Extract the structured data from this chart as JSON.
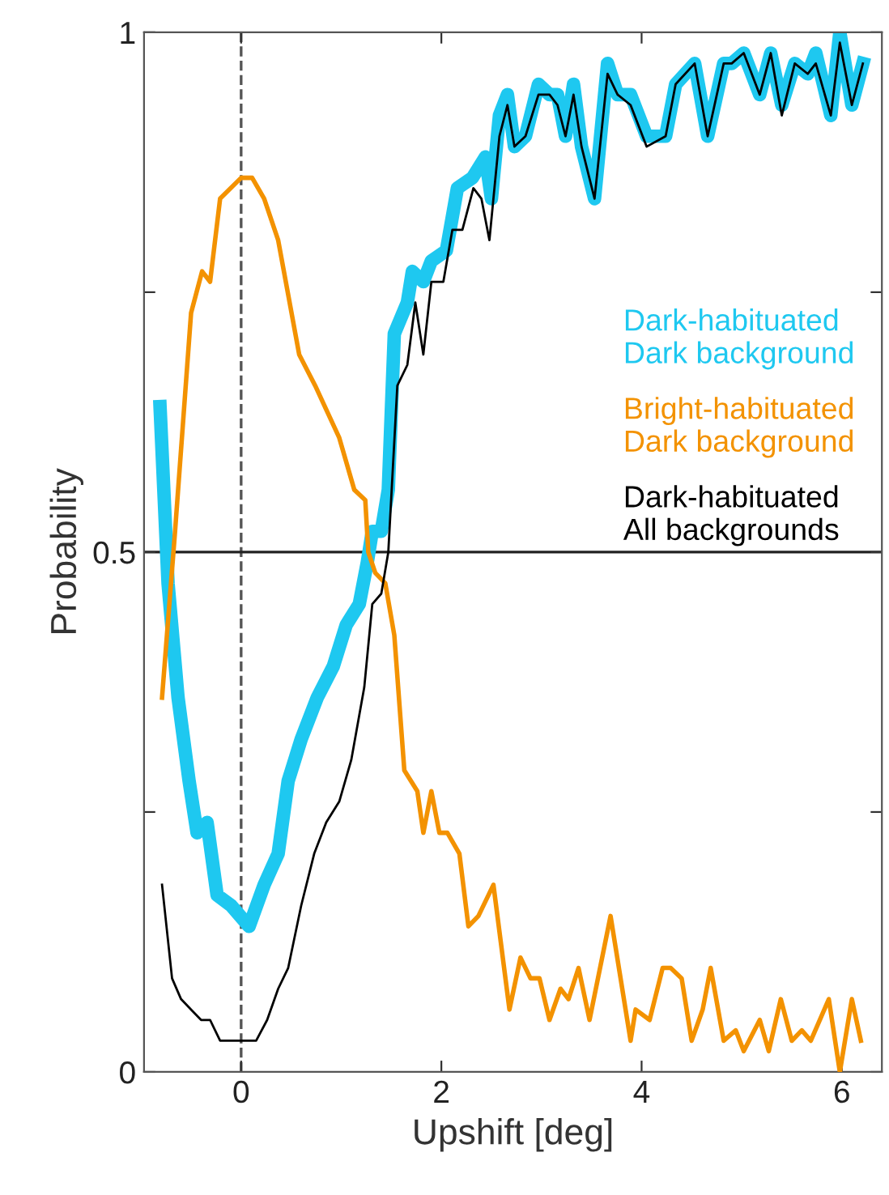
{
  "chart_data": {
    "type": "line",
    "xlabel": "Upshift [deg]",
    "ylabel": "Probability",
    "xlim": [
      -0.97,
      6.4
    ],
    "ylim": [
      0,
      1
    ],
    "xticks": [
      0,
      2,
      4,
      6
    ],
    "yticks": [
      0,
      {
        "value": 0.25,
        "label": null
      },
      0.5,
      {
        "value": 0.75,
        "label": null
      },
      1
    ],
    "grid": false,
    "legend": "right",
    "marker": "none",
    "line_style": "solid",
    "ref_lines": [
      {
        "axis": "x",
        "value": 0,
        "color": "#555555",
        "line_style": "dashed"
      },
      {
        "axis": "y",
        "value": 0.5,
        "color": "#222222",
        "line_style": "solid"
      }
    ],
    "series": [
      {
        "name": "Dark-habituated\nDark background",
        "color": "#1ec8f0",
        "x": [
          -0.81,
          -0.73,
          -0.63,
          -0.52,
          -0.44,
          -0.34,
          -0.24,
          -0.1,
          0.08,
          0.23,
          0.37,
          0.47,
          0.6,
          0.76,
          0.92,
          1.05,
          1.18,
          1.26,
          1.31,
          1.4,
          1.47,
          1.53,
          1.66,
          1.71,
          1.82,
          1.9,
          2.05,
          2.16,
          2.31,
          2.44,
          2.5,
          2.58,
          2.66,
          2.73,
          2.84,
          2.97,
          3.08,
          3.16,
          3.24,
          3.32,
          3.4,
          3.53,
          3.66,
          3.76,
          3.89,
          4.05,
          4.24,
          4.34,
          4.53,
          4.66,
          4.82,
          4.9,
          5.02,
          5.18,
          5.29,
          5.4,
          5.53,
          5.66,
          5.74,
          5.89,
          5.98,
          6.1,
          6.21
        ],
        "values": [
          0.64,
          0.47,
          0.36,
          0.28,
          0.23,
          0.24,
          0.17,
          0.16,
          0.14,
          0.18,
          0.21,
          0.28,
          0.32,
          0.36,
          0.39,
          0.43,
          0.45,
          0.49,
          0.52,
          0.52,
          0.56,
          0.71,
          0.74,
          0.77,
          0.76,
          0.78,
          0.79,
          0.85,
          0.86,
          0.88,
          0.84,
          0.92,
          0.94,
          0.89,
          0.9,
          0.95,
          0.94,
          0.94,
          0.9,
          0.95,
          0.89,
          0.84,
          0.97,
          0.94,
          0.94,
          0.9,
          0.9,
          0.95,
          0.97,
          0.9,
          0.97,
          0.97,
          0.98,
          0.94,
          0.98,
          0.93,
          0.97,
          0.96,
          0.98,
          0.92,
          1.0,
          0.93,
          0.97
        ]
      },
      {
        "name": "Bright-habituated\nDark background",
        "color": "#f39200",
        "x": [
          -0.79,
          -0.66,
          -0.5,
          -0.39,
          -0.31,
          -0.21,
          0,
          0.11,
          0.23,
          0.37,
          0.58,
          0.74,
          0.98,
          1.13,
          1.24,
          1.27,
          1.34,
          1.44,
          1.53,
          1.63,
          1.76,
          1.82,
          1.9,
          1.98,
          2.06,
          2.18,
          2.27,
          2.37,
          2.52,
          2.68,
          2.79,
          2.89,
          2.98,
          3.08,
          3.19,
          3.27,
          3.37,
          3.48,
          3.69,
          3.89,
          3.94,
          4.08,
          4.21,
          4.29,
          4.4,
          4.5,
          4.61,
          4.69,
          4.82,
          4.94,
          5.02,
          5.18,
          5.27,
          5.39,
          5.5,
          5.6,
          5.69,
          5.87,
          5.98,
          6.1,
          6.19
        ],
        "values": [
          0.36,
          0.52,
          0.73,
          0.77,
          0.76,
          0.84,
          0.86,
          0.86,
          0.84,
          0.8,
          0.69,
          0.66,
          0.61,
          0.56,
          0.55,
          0.5,
          0.48,
          0.47,
          0.42,
          0.29,
          0.27,
          0.23,
          0.27,
          0.23,
          0.23,
          0.21,
          0.14,
          0.15,
          0.18,
          0.06,
          0.11,
          0.09,
          0.09,
          0.05,
          0.08,
          0.07,
          0.1,
          0.05,
          0.15,
          0.03,
          0.06,
          0.05,
          0.1,
          0.1,
          0.09,
          0.03,
          0.06,
          0.1,
          0.03,
          0.04,
          0.02,
          0.05,
          0.02,
          0.07,
          0.03,
          0.04,
          0.03,
          0.07,
          0.0,
          0.07,
          0.03
        ]
      },
      {
        "name": "Dark-habituated\nAll backgrounds",
        "color": "#000000",
        "x": [
          -0.79,
          -0.69,
          -0.6,
          -0.5,
          -0.4,
          -0.31,
          -0.21,
          -0.06,
          0.05,
          0.15,
          0.26,
          0.37,
          0.47,
          0.6,
          0.73,
          0.85,
          0.98,
          1.1,
          1.23,
          1.31,
          1.4,
          1.47,
          1.56,
          1.66,
          1.74,
          1.82,
          1.9,
          2.02,
          2.11,
          2.21,
          2.32,
          2.4,
          2.48,
          2.58,
          2.66,
          2.73,
          2.84,
          2.97,
          3.08,
          3.16,
          3.24,
          3.32,
          3.4,
          3.53,
          3.66,
          3.76,
          3.89,
          4.05,
          4.24,
          4.34,
          4.53,
          4.66,
          4.82,
          4.9,
          5.02,
          5.18,
          5.29,
          5.4,
          5.53,
          5.66,
          5.74,
          5.89,
          5.98,
          6.1,
          6.21
        ],
        "values": [
          0.18,
          0.09,
          0.07,
          0.06,
          0.05,
          0.05,
          0.03,
          0.03,
          0.03,
          0.03,
          0.05,
          0.08,
          0.1,
          0.16,
          0.21,
          0.24,
          0.26,
          0.3,
          0.37,
          0.45,
          0.46,
          0.5,
          0.66,
          0.68,
          0.74,
          0.69,
          0.76,
          0.76,
          0.81,
          0.81,
          0.85,
          0.84,
          0.8,
          0.9,
          0.93,
          0.89,
          0.9,
          0.94,
          0.94,
          0.93,
          0.9,
          0.94,
          0.89,
          0.84,
          0.96,
          0.94,
          0.93,
          0.89,
          0.9,
          0.95,
          0.97,
          0.9,
          0.97,
          0.97,
          0.98,
          0.94,
          0.98,
          0.92,
          0.97,
          0.96,
          0.97,
          0.92,
          0.99,
          0.93,
          0.97
        ]
      }
    ]
  }
}
